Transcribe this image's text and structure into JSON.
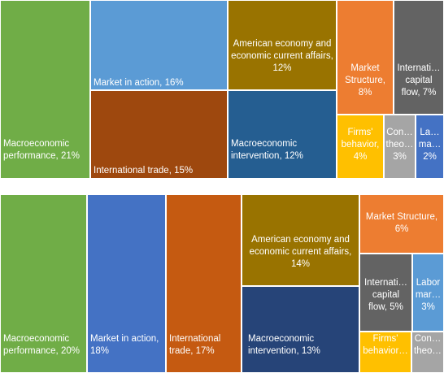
{
  "chart_data": [
    {
      "type": "treemap",
      "title": "",
      "items": [
        {
          "label": "Macroeconomic performance, 21%",
          "name": "Macroeconomic performance",
          "value": 21,
          "color": "#70AD47"
        },
        {
          "label": "Market in action, 16%",
          "name": "Market in action",
          "value": 16,
          "color": "#5B9BD5"
        },
        {
          "label": "International  trade, 15%",
          "name": "International  trade",
          "value": 15,
          "color": "#9E480E"
        },
        {
          "label": "American economy and economic current affairs, 12%",
          "name": "American economy and economic current affairs",
          "value": 12,
          "color": "#997300"
        },
        {
          "label": "Macroeconomic intervention, 12%",
          "name": "Macroeconomic intervention",
          "value": 12,
          "color": "#255E91"
        },
        {
          "label": "Market Structure, 8%",
          "name": "Market Structure",
          "value": 8,
          "color": "#ED7D31"
        },
        {
          "label": "Internati… capital flow, 7%",
          "name": "International capital flow",
          "value": 7,
          "color": "#636363"
        },
        {
          "label": "Firms' behavior, 4%",
          "name": "Firms' behavior",
          "value": 4,
          "color": "#FFC000"
        },
        {
          "label": "Con… theo… 3%",
          "name": "Consumer theory",
          "value": 3,
          "color": "#A5A5A5"
        },
        {
          "label": "La… ma… 2%",
          "name": "Labor market",
          "value": 2,
          "color": "#4472C4"
        }
      ]
    },
    {
      "type": "treemap",
      "title": "",
      "items": [
        {
          "label": "Macroeconomic performance, 20%",
          "name": "Macroeconomic performance",
          "value": 20,
          "color": "#70AD47"
        },
        {
          "label": "Market in action, 18%",
          "name": "Market in action",
          "value": 18,
          "color": "#4472C4"
        },
        {
          "label": "International trade, 17%",
          "name": "International trade",
          "value": 17,
          "color": "#C55A11"
        },
        {
          "label": "American economy and economic current affairs, 14%",
          "name": "American economy and economic current affairs",
          "value": 14,
          "color": "#997300"
        },
        {
          "label": "Macroeconomic intervention, 13%",
          "name": "Macroeconomic intervention",
          "value": 13,
          "color": "#264478"
        },
        {
          "label": "Market Structure, 6%",
          "name": "Market Structure",
          "value": 6,
          "color": "#ED7D31"
        },
        {
          "label": "Internati… capital flow, 5%",
          "name": "International capital flow",
          "value": 5,
          "color": "#636363"
        },
        {
          "label": "Labor mar… 3%",
          "name": "Labor market",
          "value": 3,
          "color": "#5B9BD5"
        },
        {
          "label": "Firms' behavior…",
          "name": "Firms' behavior",
          "value": 3,
          "color": "#FFC000"
        },
        {
          "label": "Con… theo…",
          "name": "Consumer theory",
          "value": 2,
          "color": "#A5A5A5"
        }
      ]
    }
  ]
}
